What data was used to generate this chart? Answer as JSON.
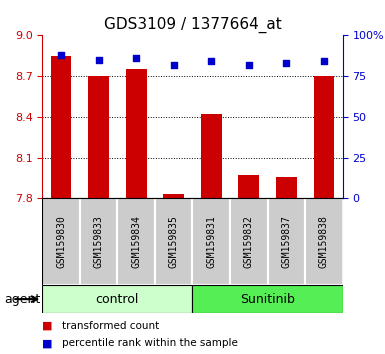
{
  "title": "GDS3109 / 1377664_at",
  "samples": [
    "GSM159830",
    "GSM159833",
    "GSM159834",
    "GSM159835",
    "GSM159831",
    "GSM159832",
    "GSM159837",
    "GSM159838"
  ],
  "red_values": [
    8.85,
    8.7,
    8.75,
    7.83,
    8.42,
    7.97,
    7.96,
    8.7
  ],
  "blue_values": [
    88,
    85,
    86,
    82,
    84,
    82,
    83,
    84
  ],
  "ylim_left": [
    7.8,
    9.0
  ],
  "ylim_right": [
    0,
    100
  ],
  "yticks_left": [
    7.8,
    8.1,
    8.4,
    8.7,
    9.0
  ],
  "yticks_right": [
    0,
    25,
    50,
    75,
    100
  ],
  "ytick_labels_right": [
    "0",
    "25",
    "50",
    "75",
    "100%"
  ],
  "groups": [
    {
      "label": "control",
      "indices": [
        0,
        1,
        2,
        3
      ],
      "color": "#ccffcc",
      "edge_color": "#aaddaa"
    },
    {
      "label": "Sunitinib",
      "indices": [
        4,
        5,
        6,
        7
      ],
      "color": "#55ee55",
      "edge_color": "#33cc33"
    }
  ],
  "agent_label": "agent",
  "bar_color": "#cc0000",
  "dot_color": "#0000cc",
  "bar_bottom": 7.8,
  "bar_width": 0.55,
  "sample_box_color": "#cccccc",
  "legend_items": [
    {
      "color": "#cc0000",
      "label": "transformed count"
    },
    {
      "color": "#0000cc",
      "label": "percentile rank within the sample"
    }
  ],
  "title_fontsize": 11,
  "tick_fontsize": 8,
  "label_fontsize": 9,
  "sample_fontsize": 7
}
